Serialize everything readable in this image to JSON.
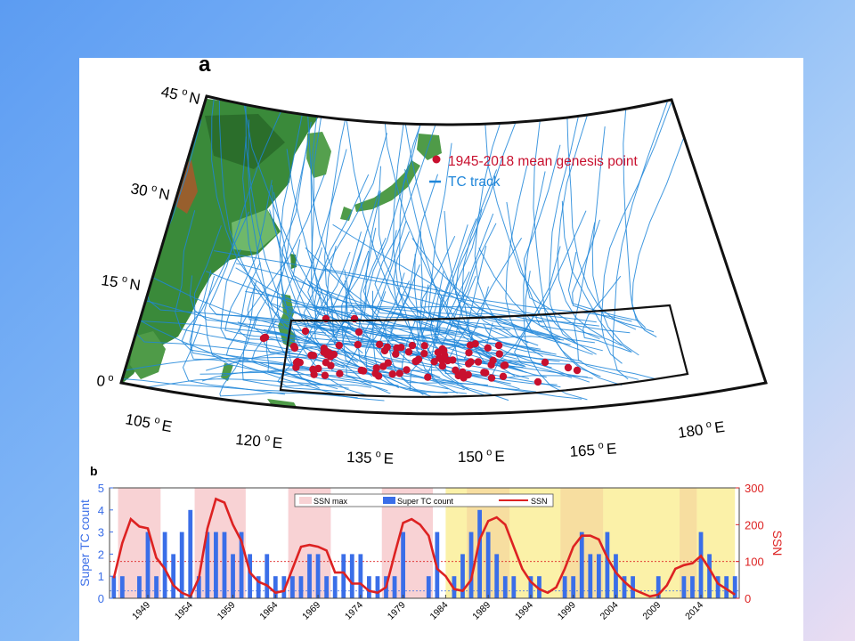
{
  "panel_a": {
    "letter": "a",
    "lat_labels": [
      {
        "deg": "45",
        "hemi": "N"
      },
      {
        "deg": "30",
        "hemi": "N"
      },
      {
        "deg": "15",
        "hemi": "N"
      },
      {
        "deg": "0",
        "hemi": ""
      }
    ],
    "lon_labels": [
      {
        "deg": "105",
        "hemi": "E"
      },
      {
        "deg": "120",
        "hemi": "E"
      },
      {
        "deg": "135",
        "hemi": "E"
      },
      {
        "deg": "150",
        "hemi": "E"
      },
      {
        "deg": "165",
        "hemi": "E"
      },
      {
        "deg": "180",
        "hemi": "E"
      }
    ],
    "legend": {
      "genesis": "1945-2018 mean genesis point",
      "track": "TC track"
    },
    "colors": {
      "genesis": "#c8102e",
      "track": "#1f86d9",
      "land_dark": "#2e7d2e",
      "land_light": "#a8d890",
      "land_mountain": "#b8502a"
    }
  },
  "panel_b": {
    "letter": "b",
    "legend": {
      "max": "SSN max",
      "count": "Super TC count",
      "ssn": "SSN"
    },
    "colors": {
      "bars": "#3a6ee8",
      "ssn": "#dd2222",
      "max_band": "#f8d2d4",
      "shade_band": "#fbf1a8",
      "left_axis": "#3a6ee8",
      "right_axis": "#dd2222"
    }
  },
  "chart_data": {
    "type": "bar",
    "x_tick_labels": [
      "1949",
      "1954",
      "1959",
      "1964",
      "1969",
      "1974",
      "1979",
      "1984",
      "1989",
      "1994",
      "1999",
      "2004",
      "2009",
      "2014"
    ],
    "xlim": [
      1945,
      2018
    ],
    "ylabel": "Super TC count",
    "ylim": [
      0,
      5
    ],
    "yticks": [
      0,
      1,
      2,
      3,
      4,
      5
    ],
    "y2label": "SSN",
    "y2lim": [
      0,
      300
    ],
    "y2ticks": [
      0,
      100,
      200,
      300
    ],
    "ssn_max_bands": [
      [
        1946,
        1950
      ],
      [
        1955,
        1960
      ],
      [
        1966,
        1970
      ],
      [
        1977,
        1982
      ],
      [
        1987,
        1991
      ],
      [
        1998,
        2002
      ],
      [
        2012,
        2013
      ]
    ],
    "shaded_period": [
      1984.5,
      2018.5
    ],
    "reference_lines": [
      {
        "axis": "y2",
        "value": 100
      },
      {
        "axis": "y2",
        "value": 20
      }
    ],
    "series": [
      {
        "name": "Super TC count",
        "type": "bar",
        "years": [
          1945,
          1946,
          1947,
          1948,
          1949,
          1950,
          1951,
          1952,
          1953,
          1954,
          1955,
          1956,
          1957,
          1958,
          1959,
          1960,
          1961,
          1962,
          1963,
          1964,
          1965,
          1966,
          1967,
          1968,
          1969,
          1970,
          1971,
          1972,
          1973,
          1974,
          1975,
          1976,
          1977,
          1978,
          1979,
          1980,
          1981,
          1982,
          1983,
          1984,
          1985,
          1986,
          1987,
          1988,
          1989,
          1990,
          1991,
          1992,
          1993,
          1994,
          1995,
          1996,
          1997,
          1998,
          1999,
          2000,
          2001,
          2002,
          2003,
          2004,
          2005,
          2006,
          2007,
          2008,
          2009,
          2010,
          2011,
          2012,
          2013,
          2014,
          2015,
          2016,
          2017,
          2018
        ],
        "values": [
          1,
          1,
          0,
          1,
          3,
          1,
          3,
          2,
          3,
          4,
          1,
          3,
          3,
          3,
          2,
          3,
          2,
          1,
          2,
          1,
          1,
          1,
          1,
          2,
          2,
          1,
          1,
          2,
          2,
          2,
          1,
          1,
          1,
          1,
          3,
          0,
          0,
          1,
          3,
          0,
          1,
          2,
          3,
          4,
          3,
          2,
          1,
          1,
          0,
          1,
          1,
          0,
          0,
          1,
          1,
          3,
          2,
          2,
          3,
          2,
          1,
          1,
          0,
          0,
          1,
          0,
          0,
          1,
          1,
          3,
          2,
          1,
          1,
          1
        ]
      },
      {
        "name": "SSN",
        "type": "line",
        "years": [
          1945,
          1946,
          1947,
          1948,
          1949,
          1950,
          1951,
          1952,
          1953,
          1954,
          1955,
          1956,
          1957,
          1958,
          1959,
          1960,
          1961,
          1962,
          1963,
          1964,
          1965,
          1966,
          1967,
          1968,
          1969,
          1970,
          1971,
          1972,
          1973,
          1974,
          1975,
          1976,
          1977,
          1978,
          1979,
          1980,
          1981,
          1982,
          1983,
          1984,
          1985,
          1986,
          1987,
          1988,
          1989,
          1990,
          1991,
          1992,
          1993,
          1994,
          1995,
          1996,
          1997,
          1998,
          1999,
          2000,
          2001,
          2002,
          2003,
          2004,
          2005,
          2006,
          2007,
          2008,
          2009,
          2010,
          2011,
          2012,
          2013,
          2014,
          2015,
          2016,
          2017,
          2018
        ],
        "values": [
          55,
          150,
          215,
          195,
          190,
          110,
          80,
          35,
          15,
          5,
          55,
          190,
          270,
          260,
          200,
          155,
          70,
          45,
          35,
          15,
          20,
          80,
          140,
          145,
          140,
          130,
          70,
          70,
          40,
          40,
          20,
          15,
          30,
          120,
          205,
          215,
          200,
          170,
          80,
          60,
          25,
          20,
          50,
          160,
          210,
          220,
          200,
          140,
          80,
          45,
          25,
          15,
          30,
          80,
          140,
          170,
          170,
          160,
          110,
          70,
          45,
          25,
          15,
          5,
          10,
          35,
          80,
          90,
          95,
          115,
          80,
          40,
          25,
          10
        ]
      }
    ]
  }
}
